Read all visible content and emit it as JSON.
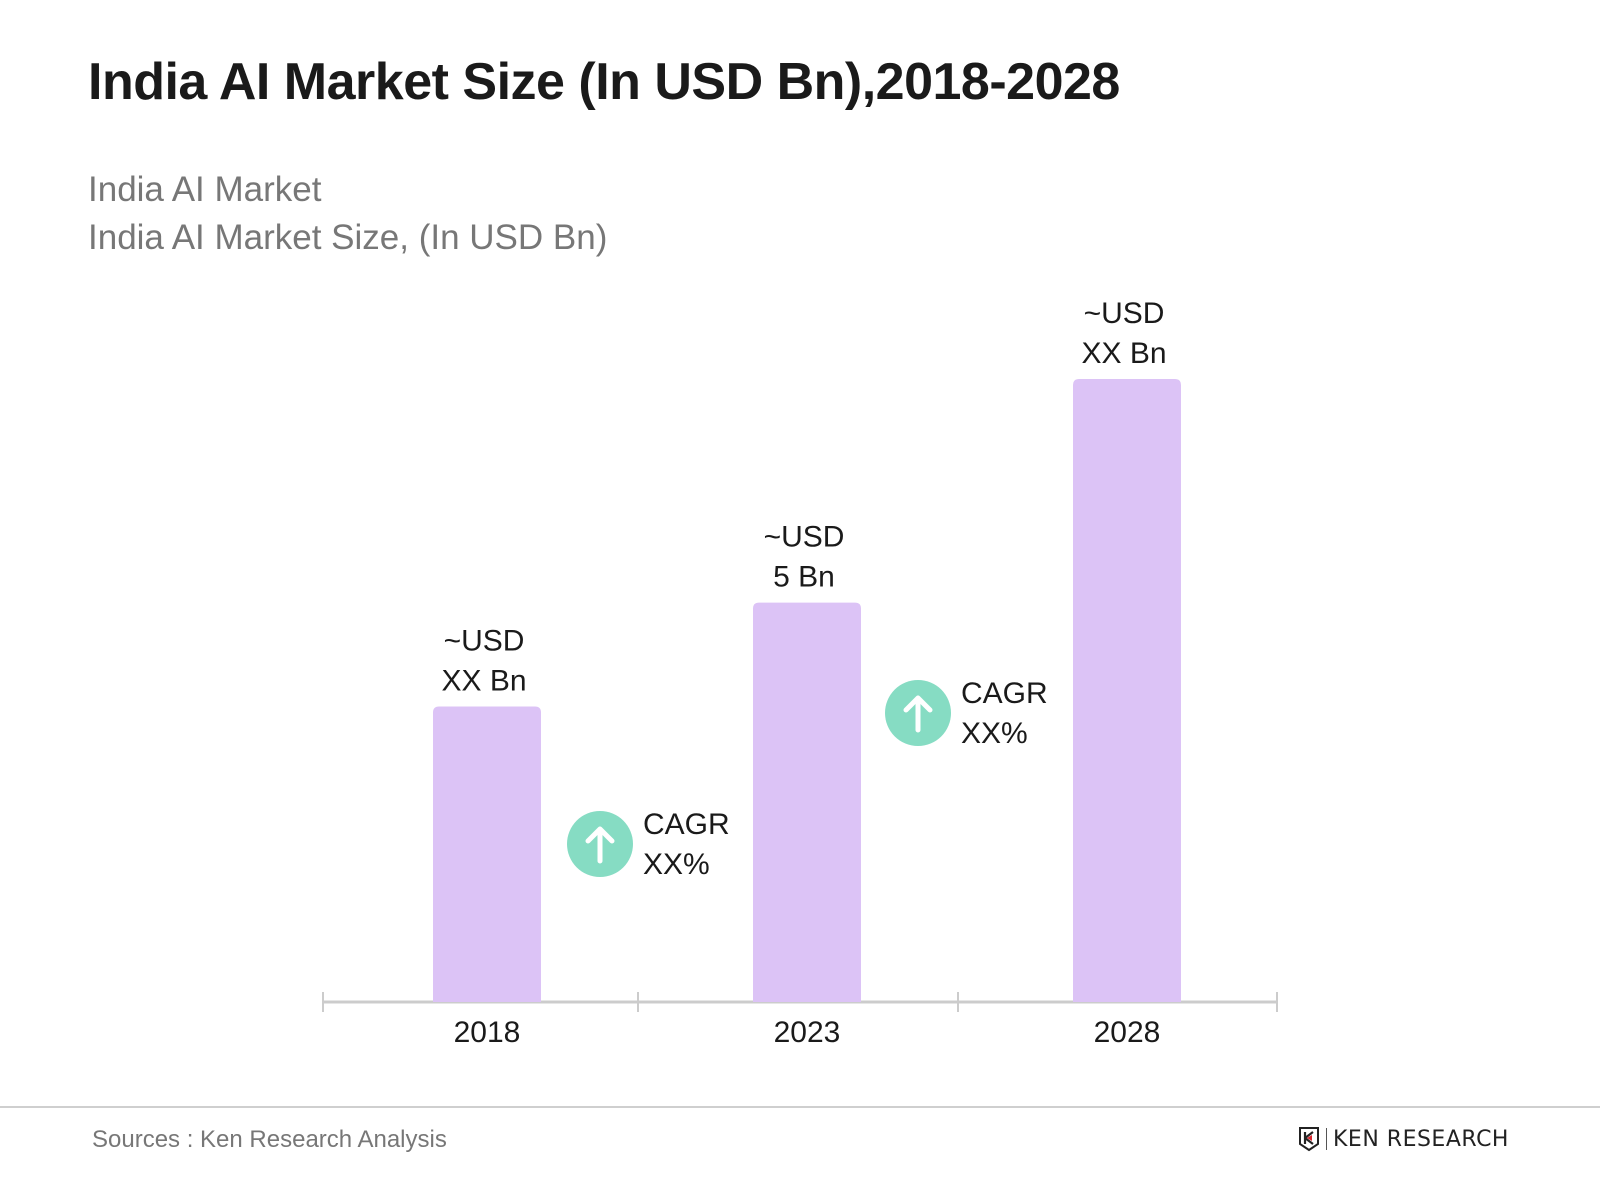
{
  "title": "India AI Market Size (In USD Bn),2018-2028",
  "subtitle_1": "India AI Market",
  "subtitle_2": "India AI Market Size, (In USD Bn)",
  "chart_data": {
    "type": "bar",
    "categories": [
      "2018",
      "2023",
      "2028"
    ],
    "values": [
      3.7,
      5,
      7.8
    ],
    "data_labels": [
      [
        "~USD",
        "XX Bn"
      ],
      [
        "~USD",
        "5 Bn"
      ],
      [
        "~USD",
        "XX Bn"
      ]
    ],
    "annotations": [
      {
        "between": [
          "2018",
          "2023"
        ],
        "lines": [
          "CAGR",
          "XX%"
        ],
        "icon": "arrow-up-circle-icon"
      },
      {
        "between": [
          "2023",
          "2028"
        ],
        "lines": [
          "CAGR",
          "XX%"
        ],
        "icon": "arrow-up-circle-icon"
      }
    ],
    "ylim": [
      0,
      7.8
    ],
    "grid": false,
    "colors": {
      "bar": "#dcc3f6",
      "cagr_icon": "#86dcc3",
      "axis": "#cccccc"
    }
  },
  "footer": {
    "sources": "Sources : Ken Research Analysis",
    "logo_text": "KEN RESEARCH"
  }
}
